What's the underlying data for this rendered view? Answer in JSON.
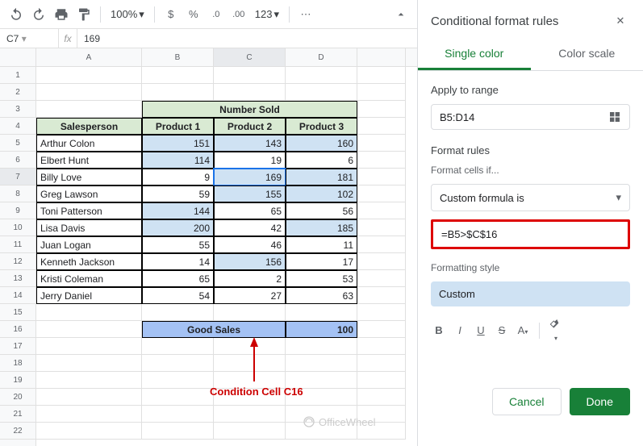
{
  "toolbar": {
    "zoom": "100%",
    "number_format": "123"
  },
  "name_box": "C7",
  "formula_value": "169",
  "col_headers": [
    "A",
    "B",
    "C",
    "D"
  ],
  "row_count": 22,
  "selected_row": 7,
  "selected_col": "C",
  "table": {
    "merged_header": "Number Sold",
    "headers": [
      "Salesperson",
      "Product 1",
      "Product 2",
      "Product 3"
    ],
    "rows": [
      {
        "name": "Arthur Colon",
        "v": [
          151,
          143,
          160
        ],
        "hl": [
          true,
          true,
          true
        ]
      },
      {
        "name": "Elbert Hunt",
        "v": [
          114,
          19,
          6
        ],
        "hl": [
          true,
          false,
          false
        ]
      },
      {
        "name": "Billy Love",
        "v": [
          9,
          169,
          181
        ],
        "hl": [
          false,
          true,
          true
        ]
      },
      {
        "name": "Greg Lawson",
        "v": [
          59,
          155,
          102
        ],
        "hl": [
          false,
          true,
          true
        ]
      },
      {
        "name": "Toni Patterson",
        "v": [
          144,
          65,
          56
        ],
        "hl": [
          true,
          false,
          false
        ]
      },
      {
        "name": "Lisa Davis",
        "v": [
          200,
          42,
          185
        ],
        "hl": [
          true,
          false,
          true
        ]
      },
      {
        "name": "Juan Logan",
        "v": [
          55,
          46,
          11
        ],
        "hl": [
          false,
          false,
          false
        ]
      },
      {
        "name": "Kenneth Jackson",
        "v": [
          14,
          156,
          17
        ],
        "hl": [
          false,
          true,
          false
        ]
      },
      {
        "name": "Kristi Coleman",
        "v": [
          65,
          2,
          53
        ],
        "hl": [
          false,
          false,
          false
        ]
      },
      {
        "name": "Jerry Daniel",
        "v": [
          54,
          27,
          63
        ],
        "hl": [
          false,
          false,
          false
        ]
      }
    ],
    "good_sales_label": "Good Sales",
    "good_sales_value": 100
  },
  "annotation": "Condition Cell C16",
  "watermark": "OfficeWheel",
  "sidepanel": {
    "title": "Conditional format rules",
    "tabs": {
      "single": "Single color",
      "scale": "Color scale"
    },
    "apply_label": "Apply to range",
    "range": "B5:D14",
    "rules_label": "Format rules",
    "cells_if_label": "Format cells if...",
    "condition": "Custom formula is",
    "formula": "=B5>$C$16",
    "style_label": "Formatting style",
    "style_value": "Custom",
    "cancel": "Cancel",
    "done": "Done"
  }
}
